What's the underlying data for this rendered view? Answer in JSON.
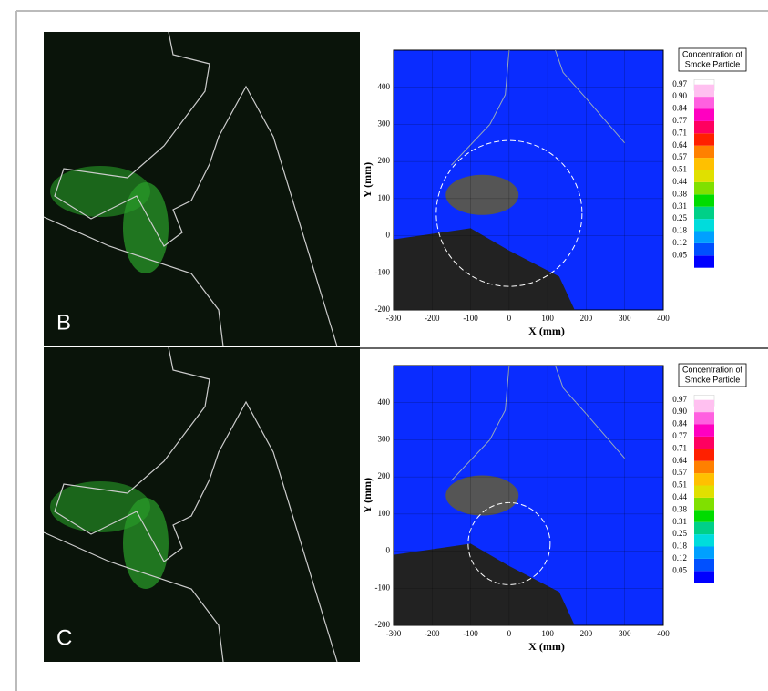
{
  "panels": [
    {
      "label": "B",
      "plot": {
        "x_label": "X (mm)",
        "y_label": "Y (mm)",
        "xlim": [
          -300,
          400
        ],
        "ylim": [
          -200,
          500
        ],
        "xticks": [
          -300,
          -200,
          -100,
          0,
          100,
          200,
          300,
          400
        ],
        "yticks": [
          -200,
          -100,
          0,
          100,
          200,
          300,
          400
        ],
        "grid": true
      },
      "colorbar": {
        "title": [
          "Concentration of",
          "Smoke Particle"
        ],
        "levels": [
          0.05,
          0.12,
          0.18,
          0.25,
          0.31,
          0.38,
          0.44,
          0.51,
          0.57,
          0.64,
          0.71,
          0.77,
          0.84,
          {
            "value": 0.9,
            "label": "0.90"
          },
          0.97
        ],
        "colors": [
          "#0000ff",
          "#0050ff",
          "#00a0ff",
          "#00dcdc",
          "#00d088",
          "#00dc00",
          "#80e000",
          "#e0e000",
          "#ffc000",
          "#ff8000",
          "#ff2000",
          "#ff0060",
          "#ff00c0",
          "#ff60e0",
          "#ffc0f0"
        ]
      }
    },
    {
      "label": "C",
      "plot": {
        "x_label": "X (mm)",
        "y_label": "Y (mm)",
        "xlim": [
          -300,
          400
        ],
        "ylim": [
          -200,
          500
        ],
        "xticks": [
          -300,
          -200,
          -100,
          0,
          100,
          200,
          300,
          400
        ],
        "yticks": [
          -200,
          -100,
          0,
          100,
          200,
          300,
          400
        ],
        "grid": true
      },
      "colorbar": {
        "title": [
          "Concentration of",
          "Smoke Particle"
        ],
        "levels": [
          0.05,
          0.12,
          0.18,
          0.25,
          0.31,
          0.38,
          0.44,
          0.51,
          0.57,
          0.64,
          0.71,
          0.77,
          0.84,
          {
            "value": 0.9,
            "label": "0.90"
          },
          0.97
        ],
        "colors": [
          "#0000ff",
          "#0050ff",
          "#00a0ff",
          "#00dcdc",
          "#00d088",
          "#00dc00",
          "#80e000",
          "#e0e000",
          "#ffc000",
          "#ff8000",
          "#ff2000",
          "#ff0060",
          "#ff00c0",
          "#ff60e0",
          "#ffc0f0"
        ]
      }
    }
  ]
}
